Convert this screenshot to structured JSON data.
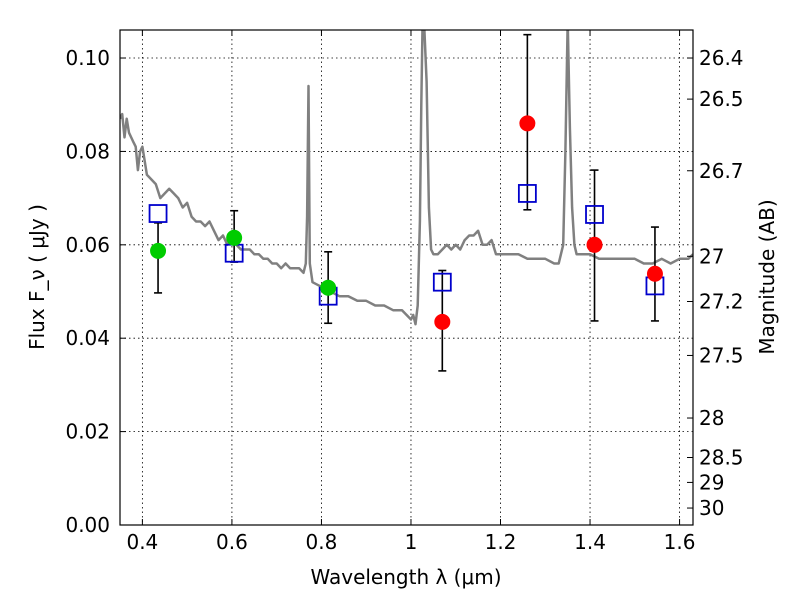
{
  "chart_data": {
    "type": "scatter",
    "xlabel": "Wavelength  λ (μm)",
    "ylabel": "Flux  F_ν  ( μJy )",
    "ylabel_right": "Magnitude (AB)",
    "xlim": [
      0.35,
      1.63
    ],
    "ylim": [
      0.0,
      0.106
    ],
    "grid": true,
    "x_ticks": [
      0.4,
      0.6,
      0.8,
      1.0,
      1.2,
      1.4,
      1.6
    ],
    "x_tick_labels": [
      "0.4",
      "0.6",
      "0.8",
      "1",
      "1.2",
      "1.4",
      "1.6"
    ],
    "y_ticks": [
      0.0,
      0.02,
      0.04,
      0.06,
      0.08,
      0.1
    ],
    "y_tick_labels": [
      "0.00",
      "0.02",
      "0.04",
      "0.06",
      "0.08",
      "0.10"
    ],
    "magnitude_ticks": [
      "26.4",
      "26.5",
      "26.7",
      "27",
      "27.2",
      "27.5",
      "28",
      "28.5",
      "29",
      "30"
    ],
    "series": [
      {
        "type": "points",
        "color": "#00cc00",
        "x": [
          0.435,
          0.605,
          0.815
        ],
        "y": [
          0.0587,
          0.0615,
          0.0508
        ],
        "yerr_low": [
          0.0497,
          0.0563,
          0.0432
        ],
        "yerr_high": [
          0.0647,
          0.0673,
          0.0585
        ]
      },
      {
        "type": "points",
        "color": "#ff0000",
        "x": [
          1.07,
          1.26,
          1.41,
          1.545
        ],
        "y": [
          0.0435,
          0.086,
          0.06,
          0.0538
        ],
        "yerr_low": [
          0.033,
          0.0675,
          0.0437,
          0.0437
        ],
        "yerr_high": [
          0.0545,
          0.105,
          0.076,
          0.0638
        ]
      },
      {
        "type": "model-squares",
        "color": "#0000cc",
        "x": [
          0.435,
          0.605,
          0.815,
          1.07,
          1.26,
          1.41,
          1.545
        ],
        "y": [
          0.0667,
          0.0582,
          0.049,
          0.052,
          0.071,
          0.0665,
          0.0512
        ]
      },
      {
        "type": "line",
        "color": "#808080",
        "x": [
          0.35,
          0.355,
          0.36,
          0.365,
          0.37,
          0.375,
          0.38,
          0.385,
          0.39,
          0.395,
          0.4,
          0.41,
          0.42,
          0.43,
          0.44,
          0.45,
          0.46,
          0.47,
          0.48,
          0.49,
          0.5,
          0.51,
          0.52,
          0.53,
          0.54,
          0.55,
          0.56,
          0.57,
          0.58,
          0.59,
          0.6,
          0.61,
          0.62,
          0.63,
          0.64,
          0.65,
          0.66,
          0.67,
          0.68,
          0.69,
          0.7,
          0.71,
          0.72,
          0.73,
          0.74,
          0.75,
          0.76,
          0.765,
          0.768,
          0.771,
          0.774,
          0.78,
          0.8,
          0.82,
          0.84,
          0.86,
          0.88,
          0.9,
          0.92,
          0.94,
          0.96,
          0.98,
          0.99,
          1.0,
          1.005,
          1.01,
          1.015,
          1.02,
          1.023,
          1.026,
          1.03,
          1.035,
          1.04,
          1.045,
          1.05,
          1.06,
          1.07,
          1.08,
          1.09,
          1.1,
          1.11,
          1.12,
          1.13,
          1.14,
          1.15,
          1.16,
          1.17,
          1.18,
          1.19,
          1.2,
          1.22,
          1.24,
          1.26,
          1.28,
          1.3,
          1.32,
          1.33,
          1.34,
          1.345,
          1.35,
          1.355,
          1.36,
          1.365,
          1.37,
          1.38,
          1.4,
          1.42,
          1.44,
          1.46,
          1.48,
          1.5,
          1.52,
          1.54,
          1.56,
          1.58,
          1.6,
          1.62,
          1.63
        ],
        "y": [
          0.087,
          0.088,
          0.083,
          0.087,
          0.084,
          0.083,
          0.082,
          0.081,
          0.076,
          0.08,
          0.081,
          0.075,
          0.074,
          0.073,
          0.07,
          0.071,
          0.072,
          0.071,
          0.07,
          0.068,
          0.069,
          0.066,
          0.065,
          0.065,
          0.064,
          0.065,
          0.063,
          0.061,
          0.062,
          0.06,
          0.061,
          0.06,
          0.059,
          0.059,
          0.059,
          0.058,
          0.058,
          0.057,
          0.057,
          0.056,
          0.056,
          0.055,
          0.056,
          0.055,
          0.055,
          0.055,
          0.054,
          0.056,
          0.066,
          0.094,
          0.056,
          0.052,
          0.051,
          0.05,
          0.049,
          0.049,
          0.048,
          0.048,
          0.047,
          0.047,
          0.046,
          0.046,
          0.045,
          0.044,
          0.045,
          0.043,
          0.047,
          0.065,
          0.09,
          0.108,
          0.106,
          0.095,
          0.068,
          0.059,
          0.058,
          0.058,
          0.059,
          0.06,
          0.059,
          0.06,
          0.059,
          0.061,
          0.062,
          0.062,
          0.063,
          0.06,
          0.06,
          0.061,
          0.058,
          0.058,
          0.058,
          0.058,
          0.057,
          0.057,
          0.057,
          0.056,
          0.056,
          0.06,
          0.08,
          0.108,
          0.085,
          0.068,
          0.06,
          0.058,
          0.058,
          0.058,
          0.057,
          0.057,
          0.057,
          0.057,
          0.057,
          0.056,
          0.056,
          0.057,
          0.056,
          0.057,
          0.057,
          0.058
        ]
      }
    ]
  }
}
